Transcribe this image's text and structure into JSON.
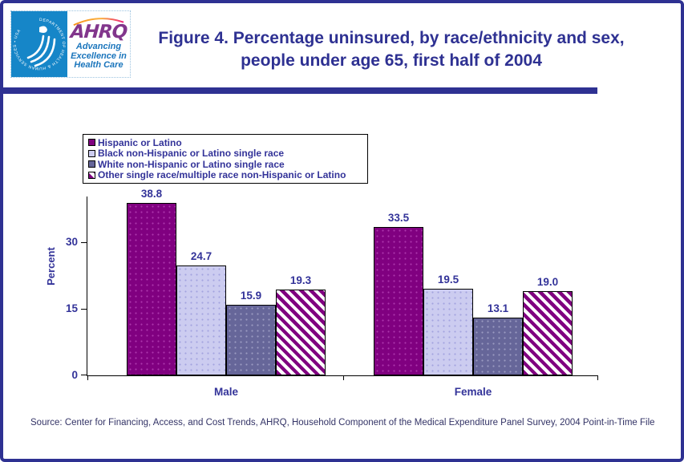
{
  "header": {
    "hhs_seal_text": "DEPARTMENT OF HEALTH & HUMAN SERVICES • USA",
    "ahrq_acronym": "AHRQ",
    "ahrq_tagline": "Advancing Excellence in Health Care",
    "title": "Figure 4. Percentage uninsured, by race/ethnicity and sex, people under age 65, first half of 2004"
  },
  "colors": {
    "accent_navy": "#2E3192",
    "chart_text_navy": "#333399",
    "hhs_blue": "#1686C8",
    "ahrq_purple": "#82368C",
    "tagline_blue": "#1A75BC",
    "source_text": "#333366",
    "bar_border": "#000000"
  },
  "chart_data": {
    "type": "bar",
    "title": "",
    "xlabel": "",
    "ylabel": "Percent",
    "categories": [
      "Male",
      "Female"
    ],
    "series": [
      {
        "name": "Hispanic or Latino",
        "pattern": "solid",
        "color": "#800080",
        "values": [
          38.8,
          33.5
        ]
      },
      {
        "name": "Black non-Hispanic or Latino single race",
        "pattern": "solid",
        "color": "#CCCCF0",
        "values": [
          24.7,
          19.5
        ]
      },
      {
        "name": "White non-Hispanic or Latino single race",
        "pattern": "solid",
        "color": "#666699",
        "values": [
          15.9,
          13.1
        ]
      },
      {
        "name": "Other single race/multiple race non-Hispanic or Latino",
        "pattern": "hatch",
        "color": "#800080",
        "values": [
          19.3,
          19.0
        ]
      }
    ],
    "yticks": [
      0,
      15,
      30
    ],
    "ylim": [
      0,
      40.3
    ],
    "grid": false,
    "legend_position": "top-left",
    "value_labels_decimals": 1
  },
  "source": {
    "text": "Source: Center for Financing, Access, and Cost Trends, AHRQ, Household Component of the Medical Expenditure Panel Survey, 2004 Point-in-Time File"
  }
}
